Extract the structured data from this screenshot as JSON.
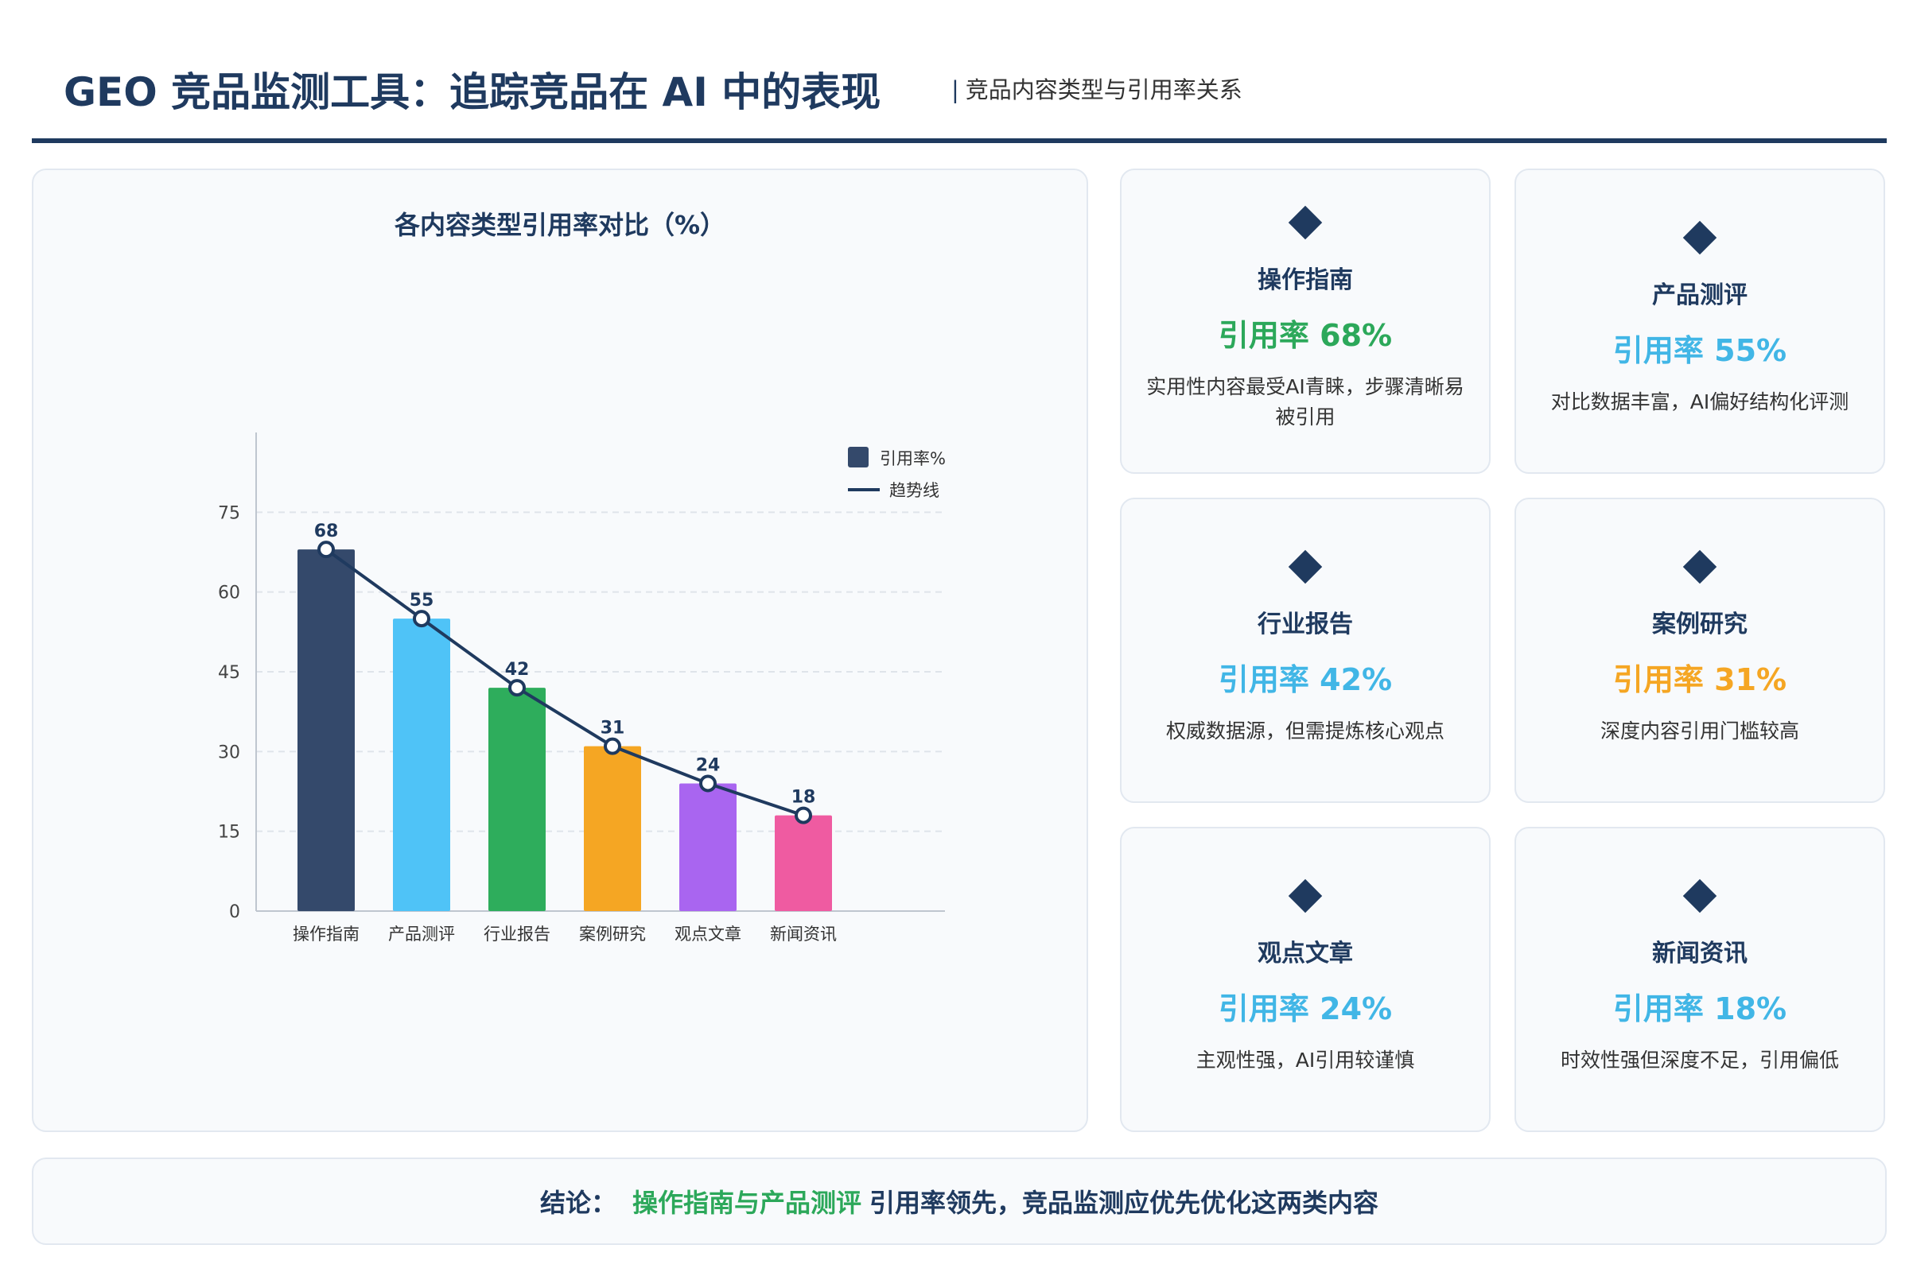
{
  "header": {
    "title": "GEO 竞品监测工具：追踪竞品在 AI 中的表现",
    "subtitle": "竞品内容类型与引用率关系"
  },
  "chart_data": {
    "type": "bar",
    "title": "各内容类型引用率对比（%）",
    "categories": [
      "操作指南",
      "产品测评",
      "行业报告",
      "案例研究",
      "观点文章",
      "新闻资讯"
    ],
    "series": [
      {
        "name": "引用率%",
        "type": "bar",
        "values": [
          68,
          55,
          42,
          31,
          24,
          18
        ],
        "colors": [
          "#34496b",
          "#4fc3f7",
          "#2ead5c",
          "#f5a623",
          "#a965f0",
          "#ef5ba1"
        ]
      },
      {
        "name": "趋势线",
        "type": "line",
        "values": [
          68,
          55,
          42,
          31,
          24,
          18
        ],
        "color": "#1f3a5f"
      }
    ],
    "data_labels": [
      "68",
      "55",
      "42",
      "31",
      "24",
      "18"
    ],
    "yticks": [
      "0",
      "15",
      "30",
      "45",
      "60",
      "75"
    ],
    "ylim": [
      0,
      90
    ],
    "grid": true,
    "legend_position": "top-right"
  },
  "cards": [
    {
      "name": "操作指南",
      "rate": "引用率 68%",
      "rate_color": "#2ca85a",
      "desc": "实用性内容最受AI青睐，步骤清晰易被引用"
    },
    {
      "name": "产品测评",
      "rate": "引用率 55%",
      "rate_color": "#41b6e6",
      "desc": "对比数据丰富，AI偏好结构化评测"
    },
    {
      "name": "行业报告",
      "rate": "引用率 42%",
      "rate_color": "#41b6e6",
      "desc": "权威数据源，但需提炼核心观点"
    },
    {
      "name": "案例研究",
      "rate": "引用率 31%",
      "rate_color": "#f5a623",
      "desc": "深度内容引用门槛较高"
    },
    {
      "name": "观点文章",
      "rate": "引用率 24%",
      "rate_color": "#41b6e6",
      "desc": "主观性强，AI引用较谨慎"
    },
    {
      "name": "新闻资讯",
      "rate": "引用率 18%",
      "rate_color": "#41b6e6",
      "desc": "时效性强但深度不足，引用偏低"
    }
  ],
  "conclusion": {
    "label": "结论：",
    "highlight": "操作指南与产品测评",
    "rest": "引用率领先，竞品监测应优先优化这两类内容"
  },
  "icons": {
    "card_marker": "diamond-icon"
  }
}
